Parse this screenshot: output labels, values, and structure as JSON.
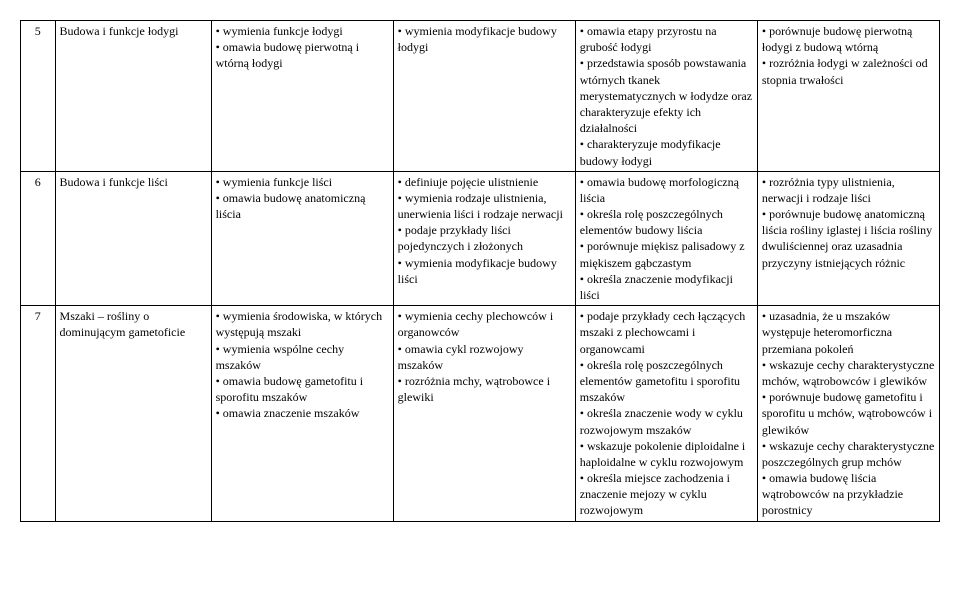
{
  "table": {
    "rows": [
      {
        "num": "5",
        "topic": "Budowa i funkcje łodygi",
        "c1": [
          "wymienia funkcje łodygi",
          "omawia budowę pierwotną i wtórną łodygi"
        ],
        "c2": [
          "wymienia modyfikacje budowy łodygi"
        ],
        "c3": [
          "omawia etapy przyrostu na grubość łodygi",
          "przedstawia sposób powstawania wtórnych tkanek merystematycznych w łodydze oraz charakteryzuje efekty ich działalności",
          "charakteryzuje modyfikacje budowy łodygi"
        ],
        "c4": [
          "porównuje budowę pierwotną łodygi z budową wtórną",
          "rozróżnia łodygi w zależności od stopnia trwałości"
        ]
      },
      {
        "num": "6",
        "topic": "Budowa i funkcje liści",
        "c1": [
          "wymienia funkcje liści",
          "omawia budowę anatomiczną liścia"
        ],
        "c2": [
          "definiuje pojęcie ulistnienie",
          "wymienia rodzaje ulistnienia, unerwienia liści i rodzaje nerwacji",
          "podaje przykłady liści pojedynczych i złożonych",
          "wymienia modyfikacje budowy liści"
        ],
        "c3": [
          "omawia budowę morfologiczną liścia",
          "określa rolę poszczególnych elementów budowy liścia",
          "porównuje miękisz palisadowy z miękiszem gąbczastym",
          "określa znaczenie modyfikacji liści"
        ],
        "c4": [
          "rozróżnia typy ulistnienia, nerwacji i rodzaje liści",
          "porównuje budowę anatomiczną liścia rośliny iglastej i liścia rośliny dwuliściennej oraz uzasadnia przyczyny istniejących różnic"
        ]
      },
      {
        "num": "7",
        "topic": "Mszaki – rośliny o dominującym gametoficie",
        "c1": [
          "wymienia środowiska, w których występują mszaki",
          "wymienia wspólne cechy mszaków",
          "omawia budowę gametofitu i sporofitu mszaków",
          "omawia znaczenie mszaków"
        ],
        "c2": [
          "wymienia cechy plechowców i organowców",
          "omawia cykl rozwojowy mszaków",
          "rozróżnia mchy, wątrobowce i glewiki"
        ],
        "c3": [
          "podaje przykłady cech łączących mszaki z plechowcami i organowcami",
          "określa rolę poszczególnych elementów gametofitu i sporofitu mszaków",
          "określa znaczenie wody w cyklu rozwojowym mszaków",
          "wskazuje pokolenie diploidalne i haploidalne w cyklu rozwojowym",
          "określa miejsce zachodzenia i znaczenie mejozy w cyklu rozwojowym"
        ],
        "c4": [
          "uzasadnia, że u mszaków występuje heteromorficzna przemiana pokoleń",
          "wskazuje cechy charakterystyczne mchów, wątrobowców i glewików",
          "porównuje budowę gametofitu i sporofitu u mchów, wątrobowców i glewików",
          "wskazuje cechy charakterystyczne poszczególnych grup mchów",
          "omawia budowę liścia wątrobowców na przykładzie porostnicy"
        ]
      }
    ]
  }
}
